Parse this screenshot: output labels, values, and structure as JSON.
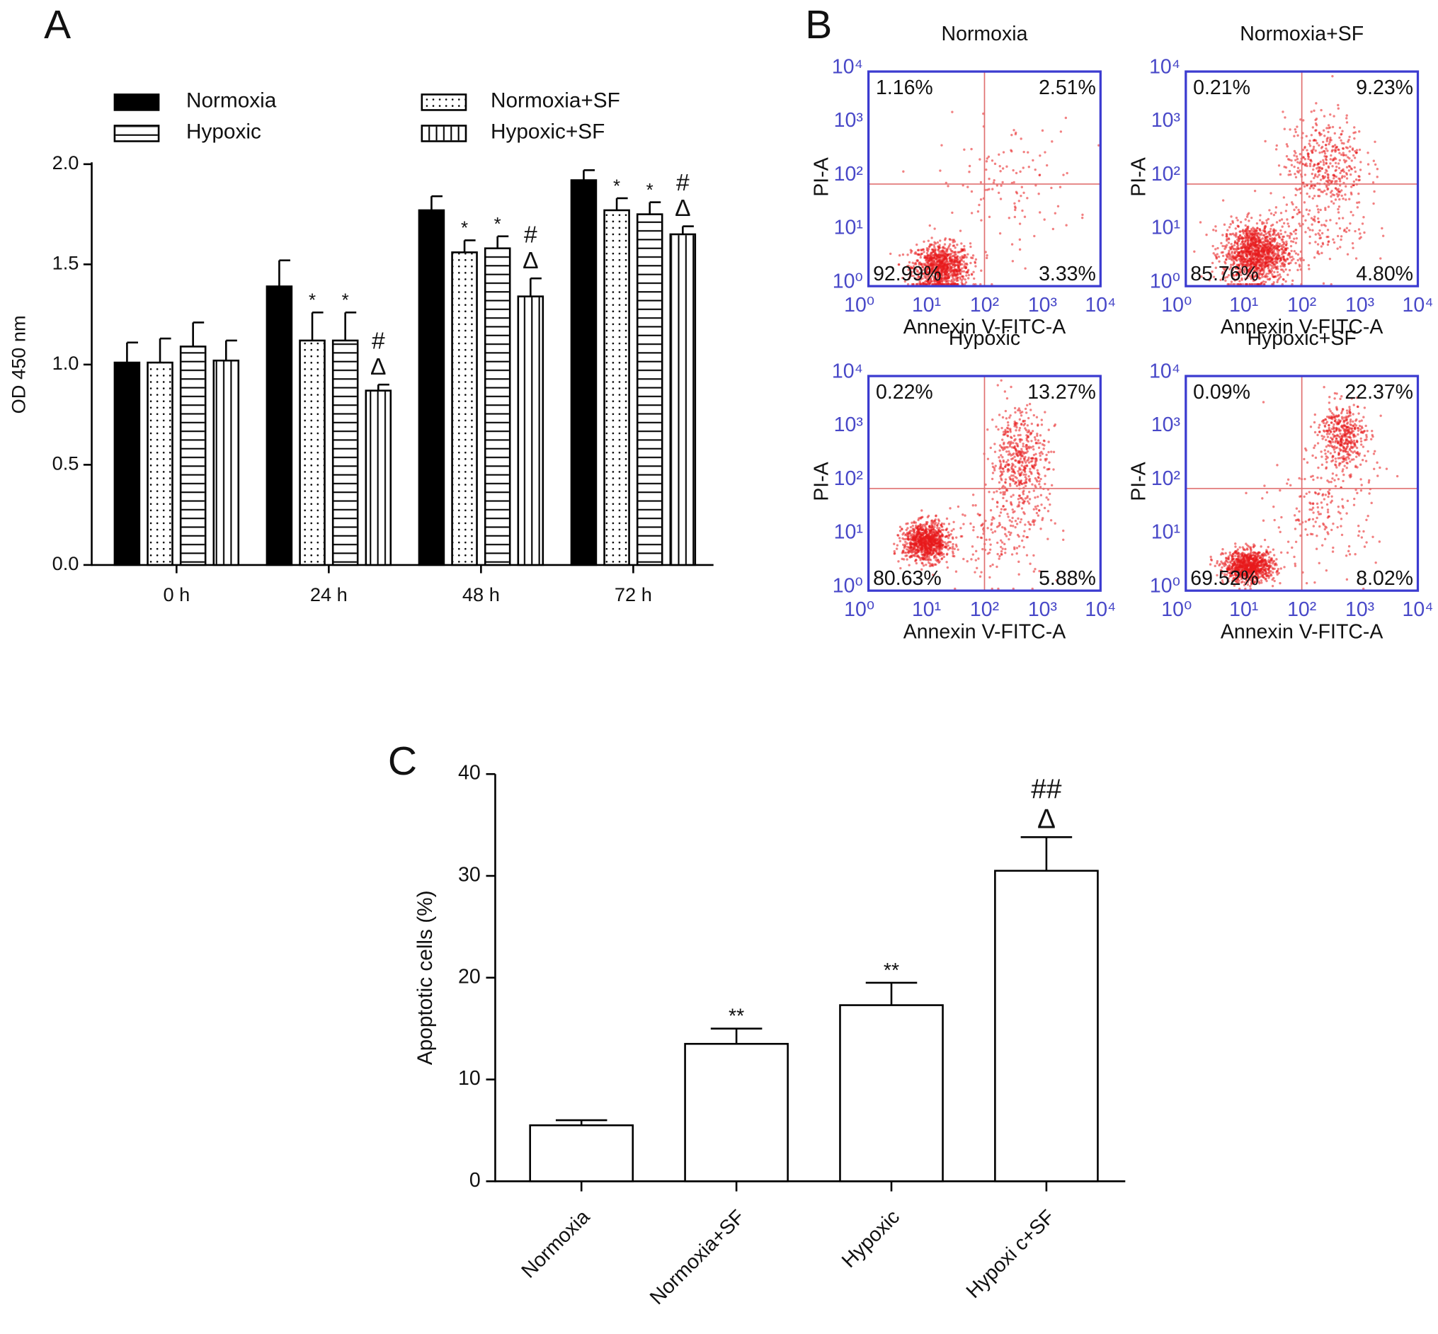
{
  "chart_data": [
    {
      "type": "bar",
      "panel": "A",
      "ylabel": "OD 450 nm",
      "categories": [
        "0 h",
        "24 h",
        "48 h",
        "72 h"
      ],
      "ylim": [
        0,
        2
      ],
      "yticks": [
        {
          "value": 0,
          "label": "0.0"
        },
        0.5,
        {
          "value": 1,
          "label": "1.0"
        },
        1.5,
        {
          "value": 2,
          "label": "2.0"
        }
      ],
      "series": [
        {
          "name": "Normoxia",
          "color": "#000000",
          "pattern": "solid",
          "values": [
            1.01,
            1.39,
            1.77,
            1.92
          ],
          "errors": [
            0.1,
            0.13,
            0.07,
            0.05
          ]
        },
        {
          "name": "Normoxia+SF",
          "color": "#ffffff",
          "pattern": "dots",
          "values": [
            1.01,
            1.12,
            1.56,
            1.77
          ],
          "errors": [
            0.12,
            0.14,
            0.06,
            0.06
          ],
          "labels": [
            null,
            "*",
            "*",
            "*"
          ]
        },
        {
          "name": "Hypoxic",
          "color": "#ffffff",
          "pattern": "horizontal",
          "values": [
            1.09,
            1.12,
            1.58,
            1.75
          ],
          "errors": [
            0.12,
            0.14,
            0.06,
            0.06
          ],
          "labels": [
            null,
            "*",
            "*",
            "*"
          ]
        },
        {
          "name": "Hypoxic+SF",
          "color": "#ffffff",
          "pattern": "vertical",
          "values": [
            1.02,
            0.87,
            1.34,
            1.65
          ],
          "errors": [
            0.1,
            0.03,
            0.09,
            0.04
          ],
          "labels": [
            null,
            [
              "#",
              "Δ"
            ],
            [
              "#",
              "Δ"
            ],
            [
              "#",
              "Δ"
            ]
          ]
        }
      ]
    },
    {
      "type": "flow_cytometry",
      "panel": "B",
      "xlabel": "Annexin V-FITC-A",
      "ylabel": "PI-A",
      "log_scale": true,
      "xlim": [
        1,
        10000
      ],
      "ylim": [
        1,
        10000
      ],
      "xticks": [
        {
          "value": 1,
          "label": "10⁰"
        },
        {
          "value": 10,
          "label": "10¹"
        },
        {
          "value": 100,
          "label": "10²"
        },
        {
          "value": 1000,
          "label": "10³"
        },
        {
          "value": 10000,
          "label": "10⁴"
        }
      ],
      "yticks": [
        {
          "value": 1,
          "label": "10⁰"
        },
        {
          "value": 10,
          "label": "10¹"
        },
        {
          "value": 100,
          "label": "10²"
        },
        {
          "value": 1000,
          "label": "10³"
        },
        {
          "value": 10000,
          "label": "10⁴"
        }
      ],
      "gate_x": 100,
      "gate_y": 80,
      "plots": [
        {
          "title": "Normoxia",
          "quadrant_labels": [
            "1.16%",
            "2.51%",
            "92.99%",
            "3.33%"
          ]
        },
        {
          "title": "Normoxia+SF",
          "quadrant_labels": [
            "0.21%",
            "9.23%",
            "85.76%",
            "4.80%"
          ]
        },
        {
          "title": "Hypoxic",
          "quadrant_labels": [
            "0.22%",
            "13.27%",
            "80.63%",
            "5.88%"
          ]
        },
        {
          "title": "Hypoxic+SF",
          "quadrant_labels": [
            "0.09%",
            "22.37%",
            "69.52%",
            "8.02%"
          ]
        }
      ]
    },
    {
      "type": "bar",
      "panel": "C",
      "ylabel": "Apoptotic cells (%)",
      "categories": [
        "Normoxia",
        "Normoxia+SF",
        "Hypoxic",
        "Hypoxi c+SF"
      ],
      "values": [
        5.5,
        13.5,
        17.3,
        30.5
      ],
      "errors": [
        0.5,
        1.5,
        2.2,
        3.3
      ],
      "labels": [
        null,
        "**",
        "**",
        [
          "##",
          "Δ"
        ]
      ],
      "color": "#ffffff",
      "ylim": [
        0,
        40
      ],
      "yticks": [
        0,
        10,
        20,
        30,
        40
      ]
    }
  ]
}
